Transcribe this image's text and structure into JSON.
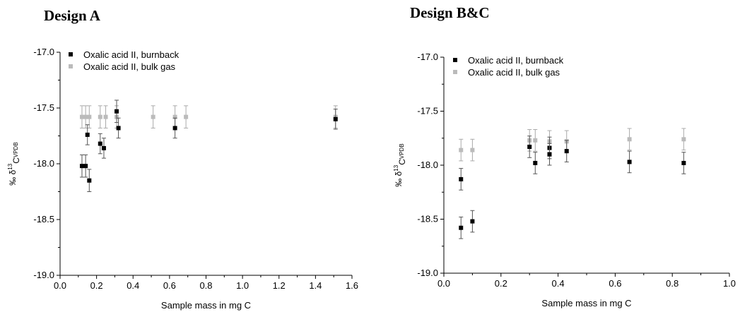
{
  "chart_data": [
    {
      "type": "scatter",
      "title": "Design A",
      "xlabel": "Sample mass in mg C",
      "ylabel": "‰ δ13C_VPDB",
      "xlim": [
        0.0,
        1.6
      ],
      "ylim": [
        -19.0,
        -17.0
      ],
      "xticks": [
        "0.0",
        "0.2",
        "0.4",
        "0.6",
        "0.8",
        "1.0",
        "1.2",
        "1.4",
        "1.6"
      ],
      "yticks": [
        "-17.0",
        "-17.5",
        "-18.0",
        "-18.5",
        "-19.0"
      ],
      "legend_position": "top-left",
      "grid": false,
      "series": [
        {
          "name": "Oxalic acid II, burnback",
          "color": "#000000",
          "points": [
            {
              "x": 0.12,
              "y": -18.02,
              "err": 0.1
            },
            {
              "x": 0.14,
              "y": -18.02,
              "err": 0.1
            },
            {
              "x": 0.15,
              "y": -17.74,
              "err": 0.09
            },
            {
              "x": 0.16,
              "y": -18.15,
              "err": 0.1
            },
            {
              "x": 0.22,
              "y": -17.82,
              "err": 0.09
            },
            {
              "x": 0.24,
              "y": -17.86,
              "err": 0.09
            },
            {
              "x": 0.31,
              "y": -17.53,
              "err": 0.1
            },
            {
              "x": 0.32,
              "y": -17.68,
              "err": 0.09
            },
            {
              "x": 0.63,
              "y": -17.68,
              "err": 0.09
            },
            {
              "x": 1.51,
              "y": -17.6,
              "err": 0.09
            }
          ]
        },
        {
          "name": "Oxalic acid II, bulk gas",
          "color": "#bbbbbb",
          "points": [
            {
              "x": 0.12,
              "y": -17.58,
              "err": 0.1
            },
            {
              "x": 0.14,
              "y": -17.58,
              "err": 0.1
            },
            {
              "x": 0.16,
              "y": -17.58,
              "err": 0.1
            },
            {
              "x": 0.22,
              "y": -17.58,
              "err": 0.1
            },
            {
              "x": 0.25,
              "y": -17.58,
              "err": 0.1
            },
            {
              "x": 0.31,
              "y": -17.58,
              "err": 0.1
            },
            {
              "x": 0.51,
              "y": -17.58,
              "err": 0.1
            },
            {
              "x": 0.63,
              "y": -17.58,
              "err": 0.1
            },
            {
              "x": 0.69,
              "y": -17.58,
              "err": 0.1
            },
            {
              "x": 1.51,
              "y": -17.58,
              "err": 0.1
            }
          ]
        }
      ]
    },
    {
      "type": "scatter",
      "title": "Design B&C",
      "xlabel": "Sample mass in mg C",
      "ylabel": "‰ δ13C_VPDB",
      "xlim": [
        0.0,
        1.0
      ],
      "ylim": [
        -19.0,
        -17.0
      ],
      "xticks": [
        "0.0",
        "0.2",
        "0.4",
        "0.6",
        "0.8",
        "1.0"
      ],
      "yticks": [
        "-17.0",
        "-17.5",
        "-18.0",
        "-18.5",
        "-19.0"
      ],
      "legend_position": "top-left",
      "grid": false,
      "series": [
        {
          "name": "Oxalic acid II, burnback",
          "color": "#000000",
          "points": [
            {
              "x": 0.06,
              "y": -18.13,
              "err": 0.1
            },
            {
              "x": 0.06,
              "y": -18.58,
              "err": 0.1
            },
            {
              "x": 0.1,
              "y": -18.52,
              "err": 0.1
            },
            {
              "x": 0.3,
              "y": -17.83,
              "err": 0.1
            },
            {
              "x": 0.32,
              "y": -17.98,
              "err": 0.1
            },
            {
              "x": 0.37,
              "y": -17.84,
              "err": 0.1
            },
            {
              "x": 0.37,
              "y": -17.9,
              "err": 0.1
            },
            {
              "x": 0.43,
              "y": -17.87,
              "err": 0.1
            },
            {
              "x": 0.65,
              "y": -17.97,
              "err": 0.1
            },
            {
              "x": 0.84,
              "y": -17.98,
              "err": 0.1
            }
          ]
        },
        {
          "name": "Oxalic acid II, bulk gas",
          "color": "#bbbbbb",
          "points": [
            {
              "x": 0.06,
              "y": -17.86,
              "err": 0.1
            },
            {
              "x": 0.1,
              "y": -17.86,
              "err": 0.1
            },
            {
              "x": 0.3,
              "y": -17.77,
              "err": 0.1
            },
            {
              "x": 0.32,
              "y": -17.77,
              "err": 0.1
            },
            {
              "x": 0.37,
              "y": -17.78,
              "err": 0.1
            },
            {
              "x": 0.43,
              "y": -17.78,
              "err": 0.1
            },
            {
              "x": 0.65,
              "y": -17.76,
              "err": 0.1
            },
            {
              "x": 0.84,
              "y": -17.76,
              "err": 0.1
            }
          ]
        }
      ]
    }
  ]
}
